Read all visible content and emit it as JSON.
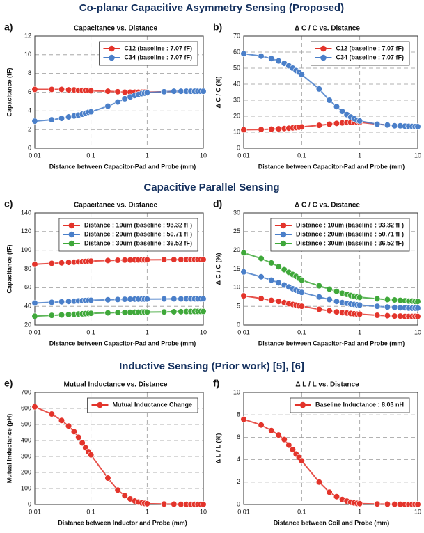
{
  "sections": [
    "Co-planar Capacitive Asymmetry Sensing (Proposed)",
    "Capacitive Parallel Sensing",
    "Inductive Sensing (Prior work) [5], [6]"
  ],
  "chart_data": [
    {
      "type": "line",
      "label": "a)",
      "title": "Capacitance vs. Distance",
      "xlabel": "Distance between Capacitor-Pad and Probe (mm)",
      "ylabel": "Capacitance (fF)",
      "x": [
        0.01,
        0.02,
        0.03,
        0.04,
        0.05,
        0.06,
        0.07,
        0.08,
        0.09,
        0.1,
        0.2,
        0.3,
        0.4,
        0.5,
        0.6,
        0.7,
        0.8,
        0.9,
        1,
        2,
        3,
        4,
        5,
        6,
        7,
        8,
        9,
        10
      ],
      "series": [
        {
          "name": "C12 (baseline : 7.07 fF)",
          "color": "#e3342b",
          "values": [
            6.3,
            6.3,
            6.3,
            6.25,
            6.25,
            6.2,
            6.2,
            6.2,
            6.2,
            6.15,
            6.1,
            6.05,
            6.0,
            6.0,
            6.0,
            6.0,
            6.0,
            6.0,
            6.0,
            6.05,
            6.1,
            6.1,
            6.1,
            6.1,
            6.1,
            6.1,
            6.1,
            6.1
          ]
        },
        {
          "name": "C34 (baseline : 7.07 fF)",
          "color": "#4a7fc9",
          "values": [
            2.9,
            3.05,
            3.2,
            3.35,
            3.45,
            3.55,
            3.65,
            3.75,
            3.85,
            3.9,
            4.5,
            4.95,
            5.3,
            5.5,
            5.65,
            5.75,
            5.85,
            5.9,
            5.95,
            6.05,
            6.1,
            6.1,
            6.1,
            6.1,
            6.1,
            6.1,
            6.1,
            6.1
          ]
        }
      ],
      "xscale": "log",
      "xlim": [
        0.01,
        10
      ],
      "xticks": [
        0.01,
        0.1,
        1,
        10
      ],
      "ylim": [
        0,
        12
      ],
      "yticks": [
        0,
        2,
        4,
        6,
        8,
        10,
        12
      ],
      "grid": true,
      "legend": "upper right"
    },
    {
      "type": "line",
      "label": "b)",
      "title": "Δ C / C vs. Distance",
      "xlabel": "Distance between Capacitor-Pad and Probe (mm)",
      "ylabel": "Δ C / C (%)",
      "x": [
        0.01,
        0.02,
        0.03,
        0.04,
        0.05,
        0.06,
        0.07,
        0.08,
        0.09,
        0.1,
        0.2,
        0.3,
        0.4,
        0.5,
        0.6,
        0.7,
        0.8,
        0.9,
        1,
        2,
        3,
        4,
        5,
        6,
        7,
        8,
        9,
        10
      ],
      "series": [
        {
          "name": "C12 (baseline : 7.07 fF)",
          "color": "#e3342b",
          "values": [
            11.5,
            11.7,
            11.9,
            12.1,
            12.3,
            12.5,
            12.7,
            12.9,
            13.1,
            13.3,
            14.3,
            15,
            15.5,
            15.8,
            16,
            16.1,
            16.2,
            16.2,
            16.2,
            15,
            14.5,
            14,
            14,
            13.8,
            13.7,
            13.6,
            13.5,
            13.5
          ]
        },
        {
          "name": "C34 (baseline : 7.07 fF)",
          "color": "#4a7fc9",
          "values": [
            59,
            57.5,
            56,
            54.5,
            53,
            51.5,
            50,
            48.5,
            47.5,
            46,
            37,
            30,
            26,
            23,
            21,
            19.5,
            18.5,
            17.5,
            17,
            15,
            14.5,
            14,
            14,
            13.8,
            13.7,
            13.6,
            13.5,
            13.5
          ]
        }
      ],
      "xscale": "log",
      "xlim": [
        0.01,
        10
      ],
      "xticks": [
        0.01,
        0.1,
        1,
        10
      ],
      "ylim": [
        0,
        70
      ],
      "yticks": [
        0,
        10,
        20,
        30,
        40,
        50,
        60,
        70
      ],
      "grid": true,
      "legend": "upper right"
    },
    {
      "type": "line",
      "label": "c)",
      "title": "Capacitance vs. Distance",
      "xlabel": "Distance between Capacitor-Pad and Probe (mm)",
      "ylabel": "Capacitance (fF)",
      "x": [
        0.01,
        0.02,
        0.03,
        0.04,
        0.05,
        0.06,
        0.07,
        0.08,
        0.09,
        0.1,
        0.2,
        0.3,
        0.4,
        0.5,
        0.6,
        0.7,
        0.8,
        0.9,
        1,
        2,
        3,
        4,
        5,
        6,
        7,
        8,
        9,
        10
      ],
      "series": [
        {
          "name": "Distance : 10um (baseline : 93.32 fF)",
          "color": "#e3342b",
          "values": [
            85,
            86,
            86.5,
            87,
            87.3,
            87.6,
            87.8,
            88,
            88.2,
            88.4,
            89,
            89.3,
            89.5,
            89.6,
            89.7,
            89.7,
            89.8,
            89.8,
            89.8,
            89.9,
            90,
            90,
            90,
            90,
            90,
            90,
            90,
            90
          ]
        },
        {
          "name": "Distance : 20um (baseline : 50.71 fF)",
          "color": "#4a7fc9",
          "values": [
            43.5,
            44.3,
            44.8,
            45.2,
            45.5,
            45.8,
            46,
            46.2,
            46.4,
            46.5,
            47,
            47.3,
            47.5,
            47.6,
            47.7,
            47.7,
            47.8,
            47.8,
            47.8,
            47.9,
            48,
            48,
            48,
            48,
            48,
            48,
            48,
            48
          ]
        },
        {
          "name": "Distance : 30um (baseline : 36.52 fF)",
          "color": "#3fa83a",
          "values": [
            29.5,
            30.3,
            30.8,
            31.2,
            31.5,
            31.8,
            32,
            32.2,
            32.4,
            32.5,
            33,
            33.3,
            33.5,
            33.6,
            33.7,
            33.7,
            33.8,
            33.8,
            33.8,
            34,
            34.2,
            34.3,
            34.4,
            34.4,
            34.5,
            34.5,
            34.5,
            34.5
          ]
        }
      ],
      "xscale": "log",
      "xlim": [
        0.01,
        10
      ],
      "xticks": [
        0.01,
        0.1,
        1,
        10
      ],
      "ylim": [
        20,
        140
      ],
      "yticks": [
        20,
        40,
        60,
        80,
        100,
        120,
        140
      ],
      "grid": true,
      "legend": "upper right"
    },
    {
      "type": "line",
      "label": "d)",
      "title": "Δ C / C vs. Distance",
      "xlabel": "Distance between Capacitor-Pad and Probe (mm)",
      "ylabel": "Δ C / C (%)",
      "x": [
        0.01,
        0.02,
        0.03,
        0.04,
        0.05,
        0.06,
        0.07,
        0.08,
        0.09,
        0.1,
        0.2,
        0.3,
        0.4,
        0.5,
        0.6,
        0.7,
        0.8,
        0.9,
        1,
        2,
        3,
        4,
        5,
        6,
        7,
        8,
        9,
        10
      ],
      "series": [
        {
          "name": "Distance : 10um (baseline : 93.32 fF)",
          "color": "#e3342b",
          "values": [
            7.8,
            7.1,
            6.6,
            6.3,
            6,
            5.7,
            5.5,
            5.3,
            5.1,
            5,
            4.2,
            3.8,
            3.5,
            3.3,
            3.2,
            3.1,
            3,
            2.9,
            2.9,
            2.6,
            2.5,
            2.4,
            2.4,
            2.3,
            2.3,
            2.3,
            2.3,
            2.3
          ]
        },
        {
          "name": "Distance : 20um (baseline : 50.71 fF)",
          "color": "#4a7fc9",
          "values": [
            14.2,
            12.9,
            12,
            11.3,
            10.7,
            10.2,
            9.7,
            9.3,
            9,
            8.7,
            7.5,
            6.8,
            6.3,
            6,
            5.8,
            5.6,
            5.5,
            5.4,
            5.3,
            5,
            4.8,
            4.7,
            4.6,
            4.6,
            4.5,
            4.5,
            4.5,
            4.5
          ]
        },
        {
          "name": "Distance : 30um (baseline : 36.52 fF)",
          "color": "#3fa83a",
          "values": [
            19.3,
            17.8,
            16.6,
            15.6,
            14.8,
            14.1,
            13.5,
            13,
            12.5,
            12,
            10.5,
            9.6,
            9,
            8.5,
            8.2,
            7.9,
            7.7,
            7.5,
            7.4,
            7,
            6.8,
            6.7,
            6.6,
            6.5,
            6.4,
            6.4,
            6.3,
            6.3
          ]
        }
      ],
      "xscale": "log",
      "xlim": [
        0.01,
        10
      ],
      "xticks": [
        0.01,
        0.1,
        1,
        10
      ],
      "ylim": [
        0,
        30
      ],
      "yticks": [
        0,
        5,
        10,
        15,
        20,
        25,
        30
      ],
      "grid": true,
      "legend": "upper right"
    },
    {
      "type": "line",
      "label": "e)",
      "title": "Mutual Inductance vs. Distance",
      "xlabel": "Distance between Inductor and Probe (mm)",
      "ylabel": "Mutual Inductance (pH)",
      "x": [
        0.01,
        0.02,
        0.03,
        0.04,
        0.05,
        0.06,
        0.07,
        0.08,
        0.09,
        0.1,
        0.2,
        0.3,
        0.4,
        0.5,
        0.6,
        0.7,
        0.8,
        0.9,
        1,
        2,
        3,
        4,
        5,
        6,
        7,
        8,
        9,
        10
      ],
      "series": [
        {
          "name": "Mutual Inductance Change",
          "color": "#e3342b",
          "values": [
            610,
            565,
            525,
            490,
            455,
            420,
            385,
            355,
            330,
            310,
            165,
            90,
            55,
            35,
            22,
            15,
            10,
            7,
            5,
            3,
            2,
            1,
            1,
            1,
            1,
            1,
            1,
            1
          ]
        }
      ],
      "xscale": "log",
      "xlim": [
        0.01,
        10
      ],
      "xticks": [
        0.01,
        0.1,
        1,
        10
      ],
      "ylim": [
        0,
        700
      ],
      "yticks": [
        0,
        100,
        200,
        300,
        400,
        500,
        600,
        700
      ],
      "grid": true,
      "legend": "upper right"
    },
    {
      "type": "line",
      "label": "f)",
      "title": "Δ L / L vs. Distance",
      "xlabel": "Distance between Coil and Probe (mm)",
      "ylabel": "Δ L / L (%)",
      "x": [
        0.01,
        0.02,
        0.03,
        0.04,
        0.05,
        0.06,
        0.07,
        0.08,
        0.09,
        0.1,
        0.2,
        0.3,
        0.4,
        0.5,
        0.6,
        0.7,
        0.8,
        0.9,
        1,
        2,
        3,
        4,
        5,
        6,
        7,
        8,
        9,
        10
      ],
      "series": [
        {
          "name": "Baseline Inductance : 8.03 nH",
          "color": "#e3342b",
          "values": [
            7.6,
            7.1,
            6.6,
            6.2,
            5.8,
            5.3,
            4.9,
            4.5,
            4.2,
            3.9,
            2,
            1.1,
            0.7,
            0.45,
            0.3,
            0.2,
            0.14,
            0.1,
            0.08,
            0.05,
            0.03,
            0.02,
            0.02,
            0.01,
            0.01,
            0.01,
            0.01,
            0.01
          ]
        }
      ],
      "xscale": "log",
      "xlim": [
        0.01,
        10
      ],
      "xticks": [
        0.01,
        0.1,
        1,
        10
      ],
      "ylim": [
        0,
        10
      ],
      "yticks": [
        0,
        2,
        4,
        6,
        8,
        10
      ],
      "grid": true,
      "legend": "upper right"
    }
  ]
}
